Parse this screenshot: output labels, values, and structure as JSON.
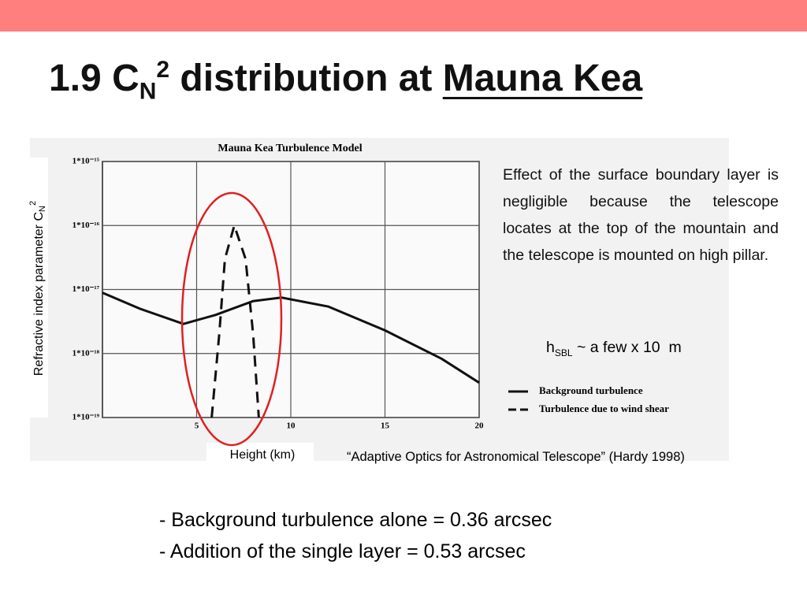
{
  "header": {
    "title": {
      "prefix": "1.9 C",
      "sub": "N",
      "sup": "2",
      "middle": " distribution at ",
      "underlined": "Mauna Kea"
    }
  },
  "chart_data": {
    "type": "line",
    "title": "Mauna Kea Turbulence Model",
    "x_label": "Height (km)",
    "y_label": {
      "text": "Refractive index parameter C",
      "sub": "N",
      "sup": "2"
    },
    "log_y": true,
    "grid": true,
    "xlim": [
      0,
      20
    ],
    "xticks": [
      5,
      10,
      15,
      20
    ],
    "ylim": [
      1e-19,
      1e-15
    ],
    "yticks": [
      {
        "value": 1e-19,
        "label": "1*10⁻¹⁹"
      },
      {
        "value": 1e-18,
        "label": "1*10⁻¹⁸"
      },
      {
        "value": 1e-17,
        "label": "1*10⁻¹⁷"
      },
      {
        "value": 1e-16,
        "label": "1*10⁻¹⁶"
      },
      {
        "value": 1e-15,
        "label": "1*10⁻¹⁵"
      }
    ],
    "series": [
      {
        "name": "Background turbulence",
        "color": "#111111",
        "dash": false,
        "x": [
          0,
          2,
          4.3,
          6,
          8,
          9.5,
          12,
          15,
          18,
          20
        ],
        "values": [
          8.9e-18,
          5e-18,
          2.9e-18,
          4e-18,
          6.6e-18,
          7.5e-18,
          5.4e-18,
          2.3e-18,
          8.3e-19,
          3.5e-19
        ]
      },
      {
        "name": "Turbulence due to wind shear",
        "color": "#111111",
        "dash": true,
        "x": [
          5.8,
          6.2,
          6.5,
          7,
          7.6,
          8,
          8.3
        ],
        "values": [
          1e-19,
          2e-18,
          3e-17,
          1e-16,
          3e-17,
          2e-18,
          1e-19
        ]
      }
    ]
  },
  "notes": {
    "paragraph": "Effect of the surface boundary layer is negligible because the telescope locates at the top of the mountain and the telescope is mounted on high pillar.",
    "formula": {
      "h": "h",
      "sub": "SBL",
      "rest": " ~ a few x 10  m"
    }
  },
  "citation": "“Adaptive Optics for Astronomical Telescope” (Hardy 1998)",
  "bullets": [
    "- Background turbulence alone = 0.36 arcsec",
    "- Addition of the single layer = 0.53 arcsec"
  ]
}
